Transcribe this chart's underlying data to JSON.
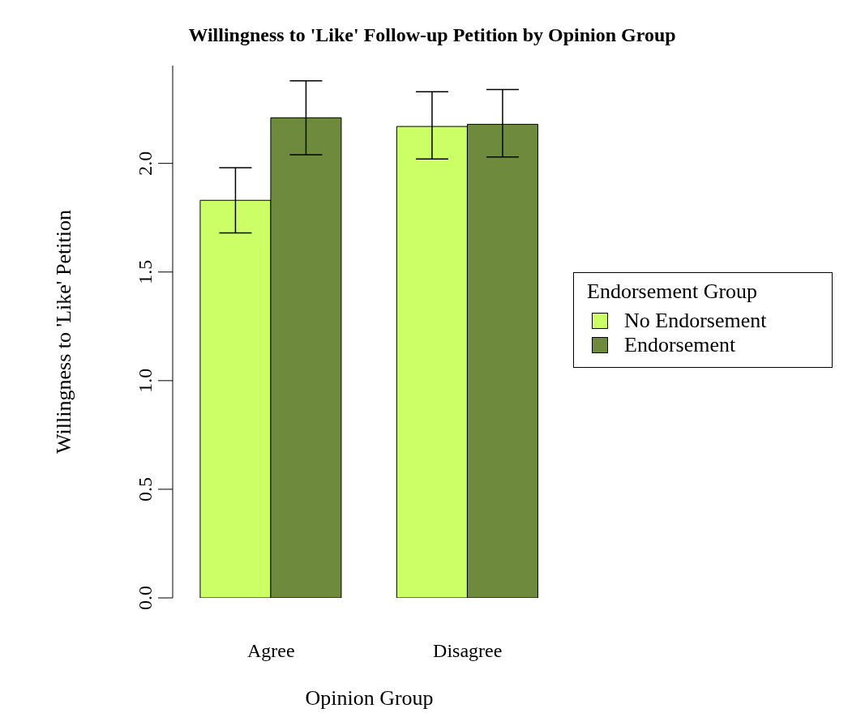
{
  "chart_data": {
    "type": "bar",
    "title": "Willingness to 'Like' Follow-up Petition by Opinion Group",
    "xlabel": "Opinion Group",
    "ylabel": "Willingness to 'Like' Petition",
    "legend_title": "Endorsement Group",
    "categories": [
      "Agree",
      "Disagree"
    ],
    "series": [
      {
        "name": "No Endorsement",
        "color": "#ccff66",
        "values": [
          1.83,
          2.17
        ],
        "errors": [
          [
            1.68,
            1.98
          ],
          [
            2.02,
            2.33
          ]
        ]
      },
      {
        "name": "Endorsement",
        "color": "#6e8b3d",
        "values": [
          2.21,
          2.18
        ],
        "errors": [
          [
            2.04,
            2.38
          ],
          [
            2.03,
            2.34
          ]
        ]
      }
    ],
    "ylim": [
      0,
      2.45
    ],
    "yticks": [
      {
        "value": 0,
        "label": "0.0"
      },
      0.5,
      {
        "value": 1,
        "label": "1.0"
      },
      1.5,
      {
        "value": 2,
        "label": "2.0"
      }
    ],
    "grid": false,
    "legend": "right"
  }
}
